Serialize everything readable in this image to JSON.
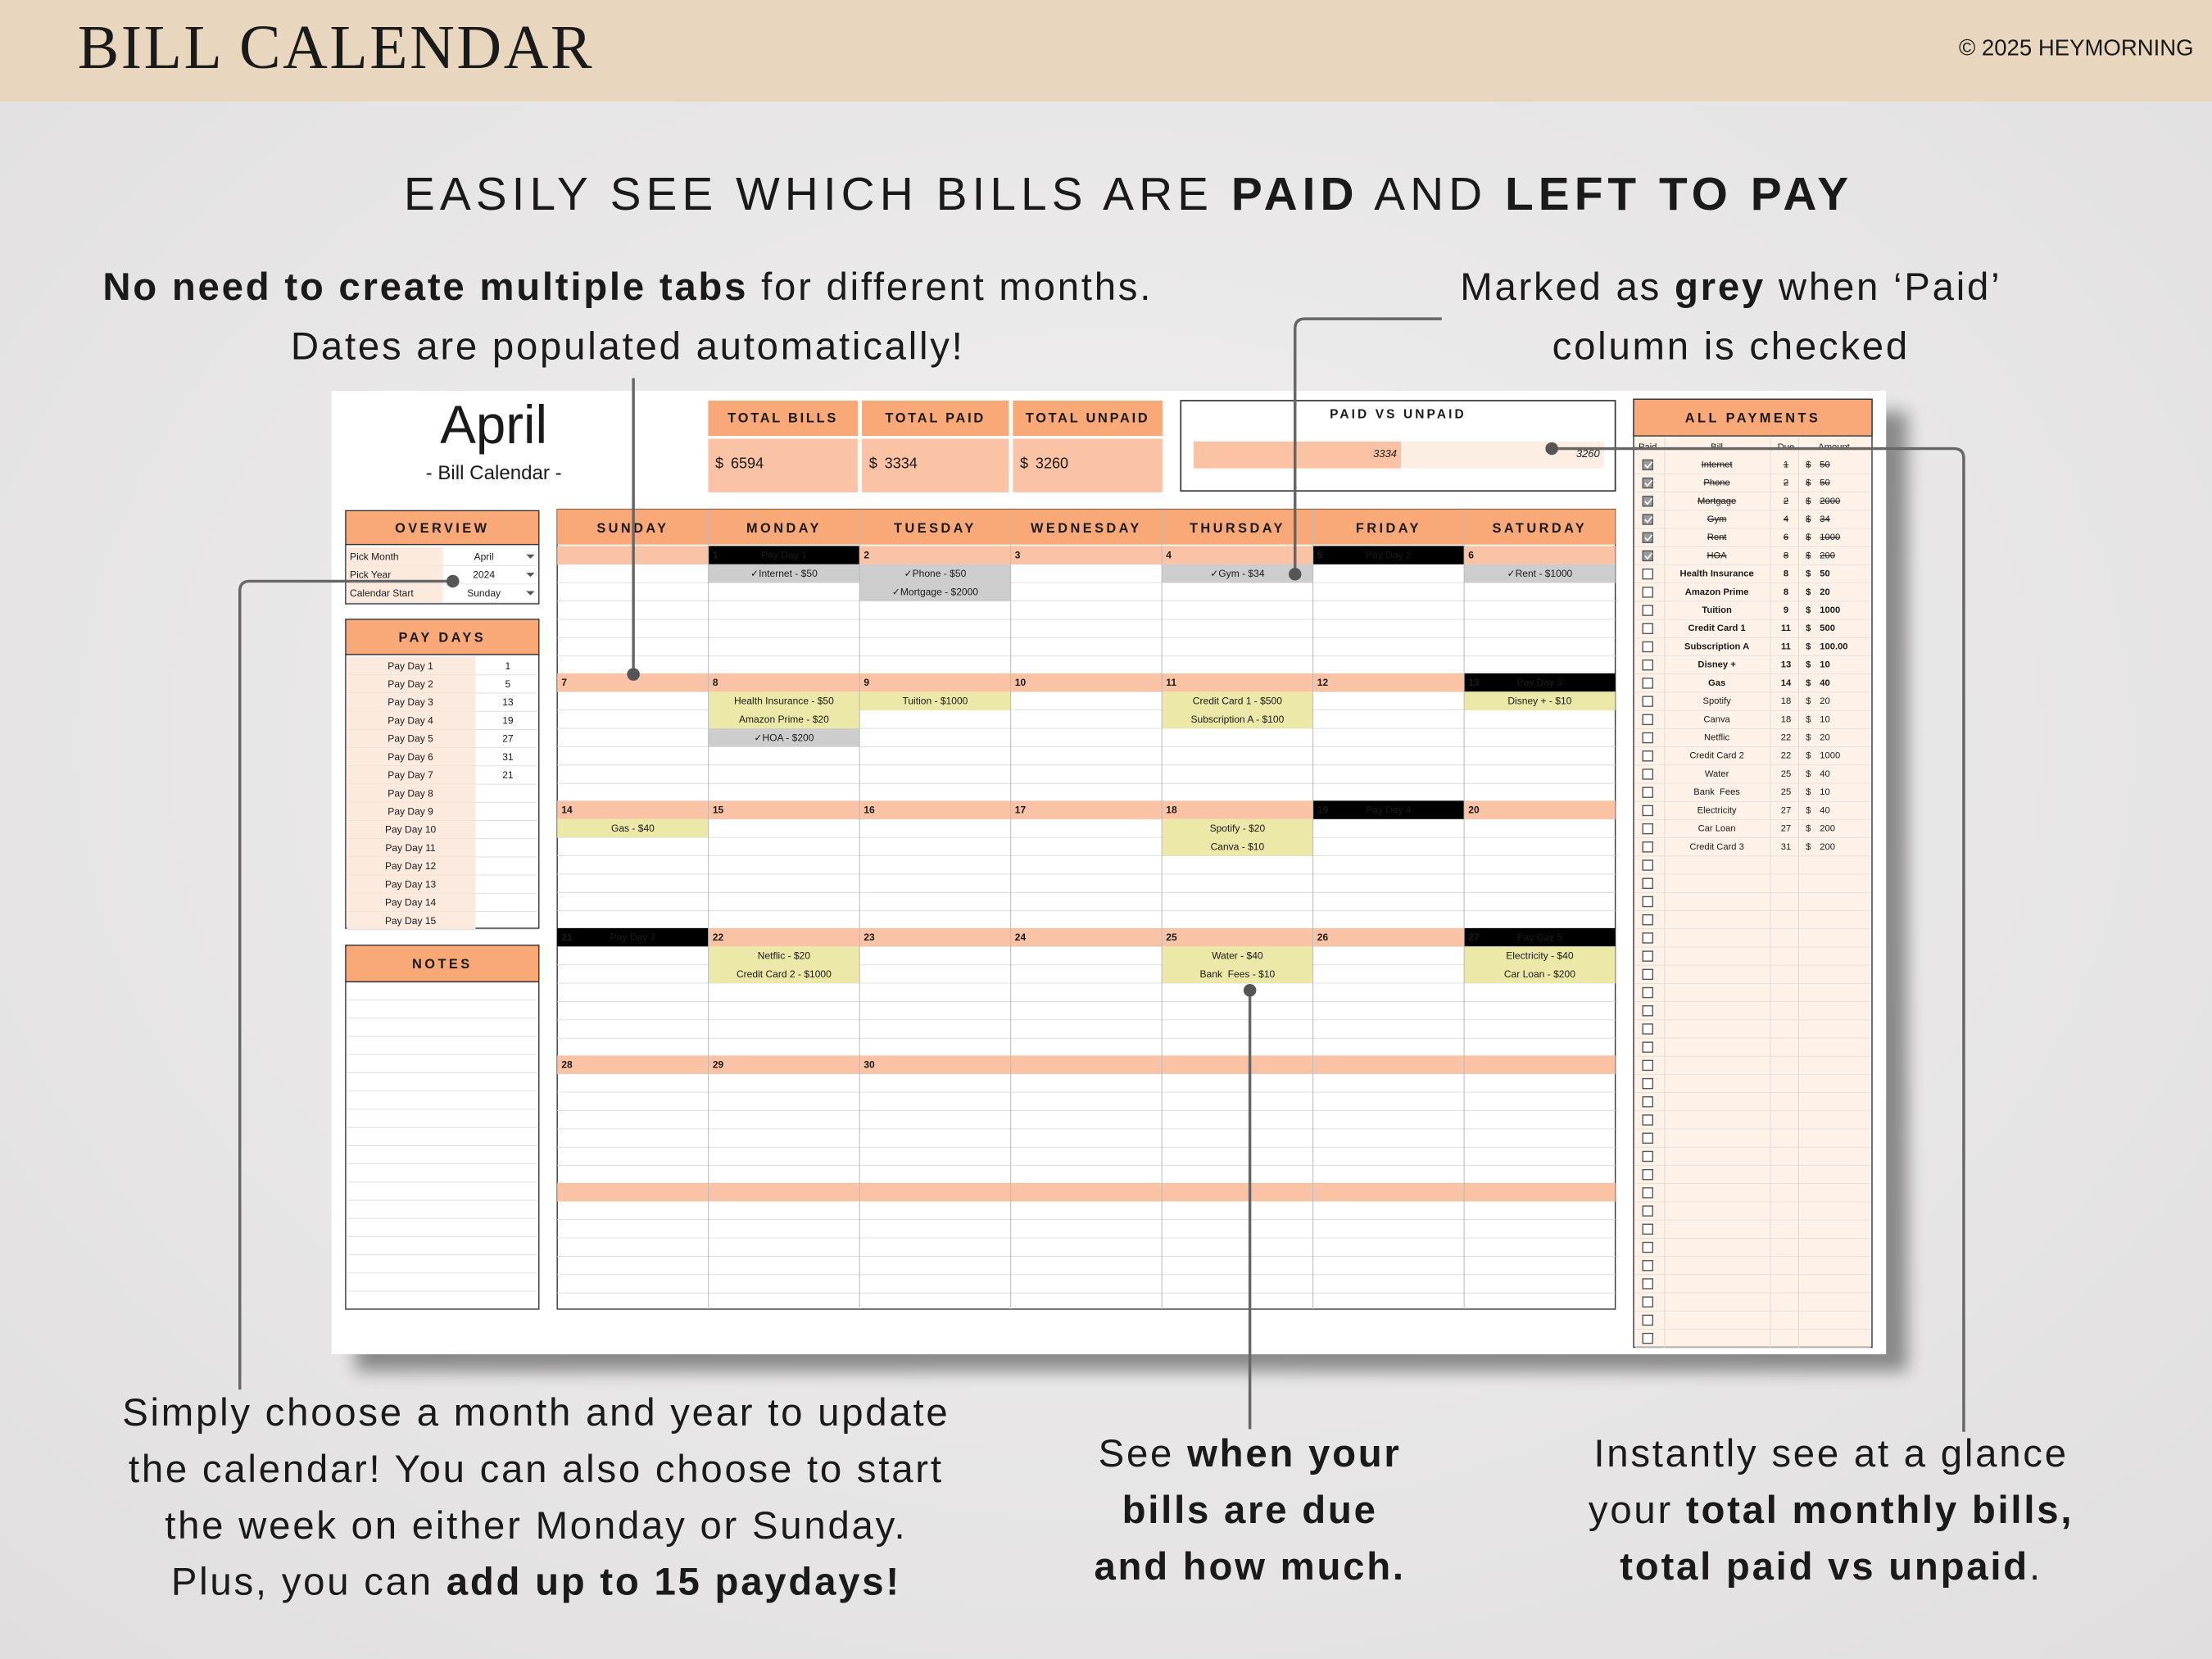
{
  "header": {
    "title": "BILL CALENDAR",
    "copyright": "© 2025 HEYMORNING"
  },
  "headline": [
    {
      "text": "EASILY SEE WHICH BILLS ARE "
    },
    {
      "text": "PAID",
      "bold": true
    },
    {
      "text": " AND "
    },
    {
      "text": "LEFT TO PAY",
      "bold": true
    }
  ],
  "callouts": [
    {
      "lines": [
        [
          {
            "text": "No need to create multiple tabs",
            "bold": true
          },
          {
            "text": " for different months."
          }
        ],
        [
          {
            "text": "Dates are populated automatically!"
          }
        ]
      ]
    },
    {
      "lines": [
        [
          {
            "text": "Marked as "
          },
          {
            "text": "grey",
            "bold": true
          },
          {
            "text": " when ‘Paid’"
          }
        ],
        [
          {
            "text": "column is checked"
          }
        ]
      ]
    },
    {
      "lines": [
        [
          {
            "text": "Simply choose a month and year to update"
          }
        ],
        [
          {
            "text": "the calendar! You can also choose to start"
          }
        ],
        [
          {
            "text": "the week on either Monday or Sunday."
          }
        ],
        [
          {
            "text": "Plus, you can "
          },
          {
            "text": "add up to 15 paydays!",
            "bold": true
          }
        ]
      ]
    },
    {
      "lines": [
        [
          {
            "text": "See "
          },
          {
            "text": "when your",
            "bold": true
          }
        ],
        [
          {
            "text": "bills are due",
            "bold": true
          }
        ],
        [
          {
            "text": "and how much.",
            "bold": true
          }
        ]
      ]
    },
    {
      "lines": [
        [
          {
            "text": "Instantly see at a glance"
          }
        ],
        [
          {
            "text": "your "
          },
          {
            "text": "total monthly bills,",
            "bold": true
          }
        ],
        [
          {
            "text": "total paid vs unpaid",
            "bold": true
          },
          {
            "text": "."
          }
        ]
      ]
    }
  ],
  "spreadsheet": {
    "month": "April",
    "subtitle": "- Bill Calendar -",
    "totals": [
      {
        "label": "TOTAL BILLS",
        "currency": "$",
        "value": 6594
      },
      {
        "label": "TOTAL PAID",
        "currency": "$",
        "value": 3334
      },
      {
        "label": "TOTAL UNPAID",
        "currency": "$",
        "value": 3260
      }
    ],
    "paid_vs_unpaid": {
      "title": "PAID VS UNPAID",
      "paid": 3334,
      "unpaid": 3260,
      "paid_color": "#fbc2a3",
      "unpaid_color": "#fdeee4"
    },
    "overview": {
      "title": "OVERVIEW",
      "rows": [
        {
          "label": "Pick Month",
          "value": "April"
        },
        {
          "label": "Pick Year",
          "value": "2024"
        },
        {
          "label": "Calendar Start",
          "value": "Sunday"
        }
      ]
    },
    "pay_days": {
      "title": "PAY DAYS",
      "rows": [
        {
          "label": "Pay Day 1",
          "day": 1
        },
        {
          "label": "Pay Day 2",
          "day": 5
        },
        {
          "label": "Pay Day 3",
          "day": 13
        },
        {
          "label": "Pay Day 4",
          "day": 19
        },
        {
          "label": "Pay Day 5",
          "day": 27
        },
        {
          "label": "Pay Day 6",
          "day": 31
        },
        {
          "label": "Pay Day 7",
          "day": 21
        },
        {
          "label": "Pay Day 8"
        },
        {
          "label": "Pay Day 9"
        },
        {
          "label": "Pay Day 10"
        },
        {
          "label": "Pay Day 11"
        },
        {
          "label": "Pay Day 12"
        },
        {
          "label": "Pay Day 13"
        },
        {
          "label": "Pay Day 14"
        },
        {
          "label": "Pay Day 15"
        }
      ]
    },
    "notes": {
      "title": "NOTES"
    },
    "calendar": {
      "weekdays": [
        "SUNDAY",
        "MONDAY",
        "TUESDAY",
        "WEDNESDAY",
        "THURSDAY",
        "FRIDAY",
        "SATURDAY"
      ],
      "weeks": [
        [
          null,
          {
            "date": 1,
            "payday": "Pay Day 1",
            "bills": [
              {
                "text": "✓Internet - $50",
                "paid": true
              }
            ]
          },
          {
            "date": 2,
            "bills": [
              {
                "text": "✓Phone - $50",
                "paid": true
              },
              {
                "text": "✓Mortgage - $2000",
                "paid": true
              }
            ]
          },
          {
            "date": 3
          },
          {
            "date": 4,
            "bills": [
              {
                "text": "✓Gym - $34",
                "paid": true
              }
            ]
          },
          {
            "date": 5,
            "payday": "Pay Day 2"
          },
          {
            "date": 6,
            "bills": [
              {
                "text": "✓Rent - $1000",
                "paid": true
              }
            ]
          }
        ],
        [
          {
            "date": 7
          },
          {
            "date": 8,
            "bills": [
              {
                "text": "Health Insurance - $50",
                "paid": false
              },
              {
                "text": "Amazon Prime - $20",
                "paid": false
              },
              {
                "text": "✓HOA - $200",
                "paid": true
              }
            ]
          },
          {
            "date": 9,
            "bills": [
              {
                "text": "Tuition - $1000",
                "paid": false
              }
            ]
          },
          {
            "date": 10
          },
          {
            "date": 11,
            "bills": [
              {
                "text": "Credit Card 1 - $500",
                "paid": false
              },
              {
                "text": "Subscription A - $100",
                "paid": false
              }
            ]
          },
          {
            "date": 12
          },
          {
            "date": 13,
            "payday": "Pay Day 3",
            "bills": [
              {
                "text": "Disney + - $10",
                "paid": false
              }
            ]
          }
        ],
        [
          {
            "date": 14,
            "bills": [
              {
                "text": "Gas - $40",
                "paid": false
              }
            ]
          },
          {
            "date": 15
          },
          {
            "date": 16
          },
          {
            "date": 17
          },
          {
            "date": 18,
            "bills": [
              {
                "text": "Spotify - $20",
                "paid": false
              },
              {
                "text": "Canva - $10",
                "paid": false
              }
            ]
          },
          {
            "date": 19,
            "payday": "Pay Day 4"
          },
          {
            "date": 20
          }
        ],
        [
          {
            "date": 21,
            "payday": "Pay Day 7"
          },
          {
            "date": 22,
            "bills": [
              {
                "text": "Netflic - $20",
                "paid": false
              },
              {
                "text": "Credit Card 2 - $1000",
                "paid": false
              }
            ]
          },
          {
            "date": 23
          },
          {
            "date": 24
          },
          {
            "date": 25,
            "bills": [
              {
                "text": "Water - $40",
                "paid": false
              },
              {
                "text": "Bank  Fees - $10",
                "paid": false
              }
            ]
          },
          {
            "date": 26
          },
          {
            "date": 27,
            "payday": "Pay Day 5",
            "bills": [
              {
                "text": "Electricity - $40",
                "paid": false
              },
              {
                "text": "Car Loan - $200",
                "paid": false
              }
            ]
          }
        ],
        [
          {
            "date": 28
          },
          {
            "date": 29
          },
          {
            "date": 30
          },
          null,
          null,
          null,
          null
        ],
        [
          null,
          null,
          null,
          null,
          null,
          null,
          null
        ]
      ]
    },
    "all_payments": {
      "title": "ALL PAYMENTS",
      "columns": [
        "Paid",
        "Bill",
        "Due",
        "Amount"
      ],
      "rows": [
        {
          "paid": true,
          "bill": "Internet",
          "due": 1,
          "currency": "$",
          "amount": 50
        },
        {
          "paid": true,
          "bill": "Phone",
          "due": 2,
          "currency": "$",
          "amount": 50
        },
        {
          "paid": true,
          "bill": "Mortgage",
          "due": 2,
          "currency": "$",
          "amount": 2000
        },
        {
          "paid": true,
          "bill": "Gym",
          "due": 4,
          "currency": "$",
          "amount": 34
        },
        {
          "paid": true,
          "bill": "Rent",
          "due": 6,
          "currency": "$",
          "amount": 1000
        },
        {
          "paid": true,
          "bill": "HOA",
          "due": 8,
          "currency": "$",
          "amount": 200
        },
        {
          "paid": false,
          "bill": "Health Insurance",
          "due": 8,
          "currency": "$",
          "amount": 50,
          "color": "#c8372d"
        },
        {
          "paid": false,
          "bill": "Amazon Prime",
          "due": 8,
          "currency": "$",
          "amount": 20,
          "color": "#c8372d"
        },
        {
          "paid": false,
          "bill": "Tuition",
          "due": 9,
          "currency": "$",
          "amount": 1000,
          "color": "#c8372d"
        },
        {
          "paid": false,
          "bill": "Credit Card 1",
          "due": 11,
          "currency": "$",
          "amount": 500,
          "color": "#cdbd1c"
        },
        {
          "paid": false,
          "bill": "Subscription A",
          "due": 11,
          "currency": "$",
          "amount": "100.00",
          "color": "#cdbd1c"
        },
        {
          "paid": false,
          "bill": "Disney +",
          "due": 13,
          "currency": "$",
          "amount": 10,
          "color": "#cdbd1c"
        },
        {
          "paid": false,
          "bill": "Gas",
          "due": 14,
          "currency": "$",
          "amount": 40,
          "color": "#cdbd1c"
        },
        {
          "paid": false,
          "bill": "Spotify",
          "due": 18,
          "currency": "$",
          "amount": 20
        },
        {
          "paid": false,
          "bill": "Canva",
          "due": 18,
          "currency": "$",
          "amount": 10
        },
        {
          "paid": false,
          "bill": "Netflic",
          "due": 22,
          "currency": "$",
          "amount": 20
        },
        {
          "paid": false,
          "bill": "Credit Card 2",
          "due": 22,
          "currency": "$",
          "amount": 1000
        },
        {
          "paid": false,
          "bill": "Water",
          "due": 25,
          "currency": "$",
          "amount": 40
        },
        {
          "paid": false,
          "bill": "Bank  Fees",
          "due": 25,
          "currency": "$",
          "amount": 10
        },
        {
          "paid": false,
          "bill": "Electricity",
          "due": 27,
          "currency": "$",
          "amount": 40
        },
        {
          "paid": false,
          "bill": "Car Loan",
          "due": 27,
          "currency": "$",
          "amount": 200
        },
        {
          "paid": false,
          "bill": "Credit Card 3",
          "due": 31,
          "currency": "$",
          "amount": 200
        }
      ]
    }
  }
}
